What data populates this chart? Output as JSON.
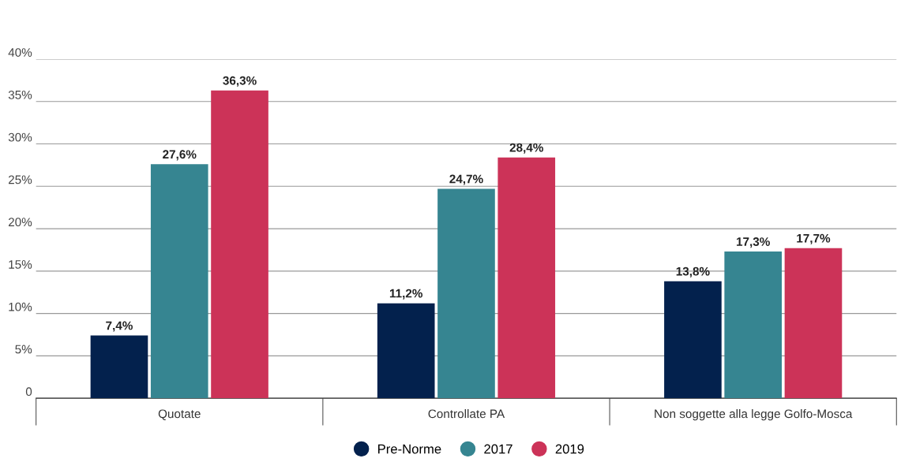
{
  "chart_data": {
    "type": "bar",
    "categories": [
      "Quotate",
      "Controllate PA",
      "Non soggette alla legge Golfo-Mosca"
    ],
    "series": [
      {
        "name": "Pre-Norme",
        "color": "#03214d",
        "values": [
          7.4,
          11.2,
          13.8
        ],
        "value_labels": [
          "7,4%",
          "11,2%",
          "13,8%"
        ]
      },
      {
        "name": "2017",
        "color": "#368591",
        "values": [
          27.6,
          24.7,
          17.3
        ],
        "value_labels": [
          "27,6%",
          "24,7%",
          "17,3%"
        ]
      },
      {
        "name": "2019",
        "color": "#cc3358",
        "values": [
          36.3,
          28.4,
          17.7
        ],
        "value_labels": [
          "36,3%",
          "28,4%",
          "17,7%"
        ]
      }
    ],
    "ylim": [
      0,
      40
    ],
    "yticks": [
      0,
      {
        "value": 5,
        "label": "5%"
      },
      {
        "value": 10,
        "label": "10%"
      },
      {
        "value": 15,
        "label": "15%"
      },
      {
        "value": 20,
        "label": "20%"
      },
      {
        "value": 25,
        "label": "25%"
      },
      {
        "value": 30,
        "label": "30%"
      },
      {
        "value": 35,
        "label": "35%"
      },
      {
        "value": 40,
        "label": "40%"
      }
    ],
    "grid": "y",
    "legend": "bottom",
    "marker": "circle"
  }
}
